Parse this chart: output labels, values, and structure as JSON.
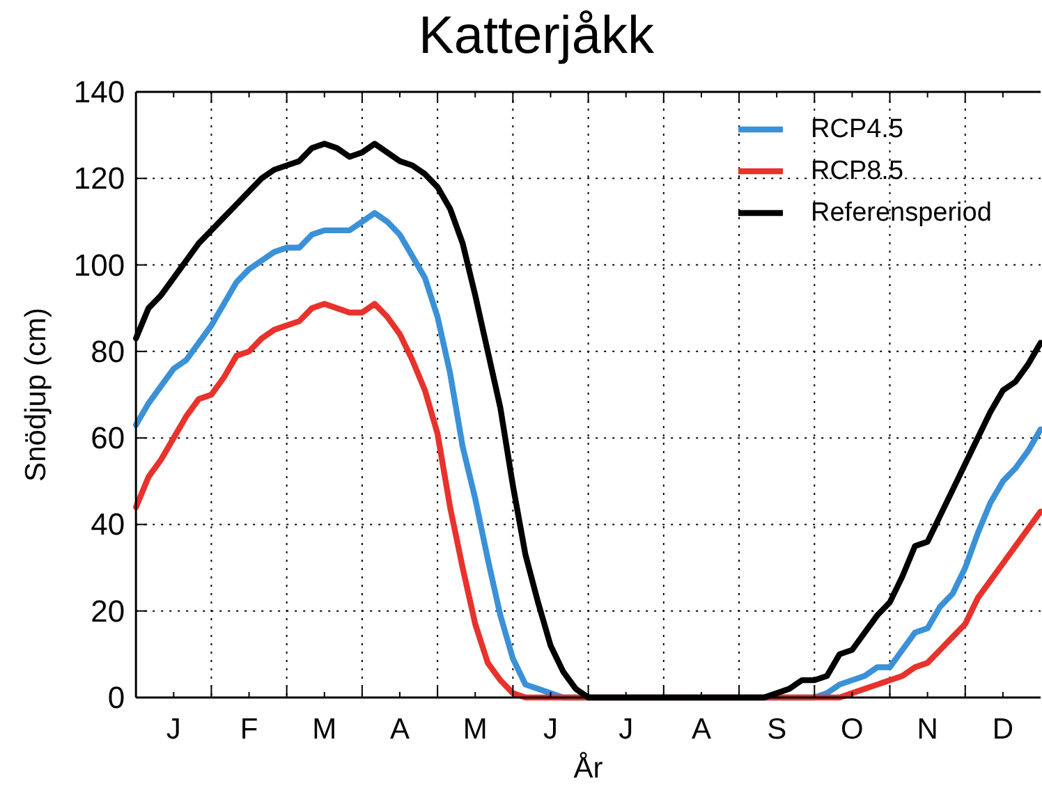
{
  "chart_data": {
    "type": "line",
    "title": "Katterjåkk",
    "xlabel": "År",
    "ylabel": "Snödjup (cm)",
    "categories": [
      null,
      null,
      null,
      "J",
      null,
      null,
      null,
      null,
      null,
      "F",
      null,
      null,
      null,
      null,
      null,
      "M",
      null,
      null,
      null,
      null,
      null,
      "A",
      null,
      null,
      null,
      null,
      null,
      "M",
      null,
      null,
      null,
      null,
      null,
      "J",
      null,
      null,
      null,
      null,
      null,
      "J",
      null,
      null,
      null,
      null,
      null,
      "A",
      null,
      null,
      null,
      null,
      null,
      "S",
      null,
      null,
      null,
      null,
      null,
      "O",
      null,
      null,
      null,
      null,
      null,
      "N",
      null,
      null,
      null,
      null,
      null,
      "D",
      null,
      null,
      null
    ],
    "ylim": [
      0,
      140
    ],
    "yticks": [
      0,
      20,
      40,
      60,
      80,
      100,
      120,
      140
    ],
    "grid": true,
    "legend": "top right",
    "line_style": "solid",
    "series": [
      {
        "name": "RCP4.5",
        "color": "#3b91d7",
        "values": [
          63,
          68,
          72,
          76,
          78,
          82,
          86,
          91,
          96,
          99,
          101,
          103,
          104,
          104,
          107,
          108,
          108,
          108,
          110,
          112,
          110,
          107,
          102,
          97,
          88,
          75,
          58,
          46,
          32,
          19,
          9,
          3,
          2,
          1,
          0,
          0,
          0,
          0,
          0,
          0,
          0,
          0,
          0,
          0,
          0,
          0,
          0,
          0,
          0,
          0,
          0,
          0,
          0,
          0,
          0,
          1,
          3,
          4,
          5,
          7,
          7,
          11,
          15,
          16,
          21,
          24,
          30,
          38,
          45,
          50,
          53,
          57,
          62
        ]
      },
      {
        "name": "RCP8.5",
        "color": "#e8322c",
        "values": [
          44,
          51,
          55,
          60,
          65,
          69,
          70,
          74,
          79,
          80,
          83,
          85,
          86,
          87,
          90,
          91,
          90,
          89,
          89,
          91,
          88,
          84,
          78,
          71,
          61,
          44,
          30,
          17,
          8,
          4,
          1,
          0,
          0,
          0,
          0,
          0,
          0,
          0,
          0,
          0,
          0,
          0,
          0,
          0,
          0,
          0,
          0,
          0,
          0,
          0,
          0,
          0,
          0,
          0,
          0,
          0,
          0,
          1,
          2,
          3,
          4,
          5,
          7,
          8,
          11,
          14,
          17,
          23,
          27,
          31,
          35,
          39,
          43
        ]
      },
      {
        "name": "Referensperiod",
        "color": "#000000",
        "values": [
          83,
          90,
          93,
          97,
          101,
          105,
          108,
          111,
          114,
          117,
          120,
          122,
          123,
          124,
          127,
          128,
          127,
          125,
          126,
          128,
          126,
          124,
          123,
          121,
          118,
          113,
          105,
          93,
          80,
          67,
          49,
          33,
          22,
          12,
          6,
          2,
          0,
          0,
          0,
          0,
          0,
          0,
          0,
          0,
          0,
          0,
          0,
          0,
          0,
          0,
          0,
          1,
          2,
          4,
          4,
          5,
          10,
          11,
          15,
          19,
          22,
          28,
          35,
          36,
          42,
          48,
          54,
          60,
          66,
          71,
          73,
          77,
          82
        ]
      }
    ]
  }
}
